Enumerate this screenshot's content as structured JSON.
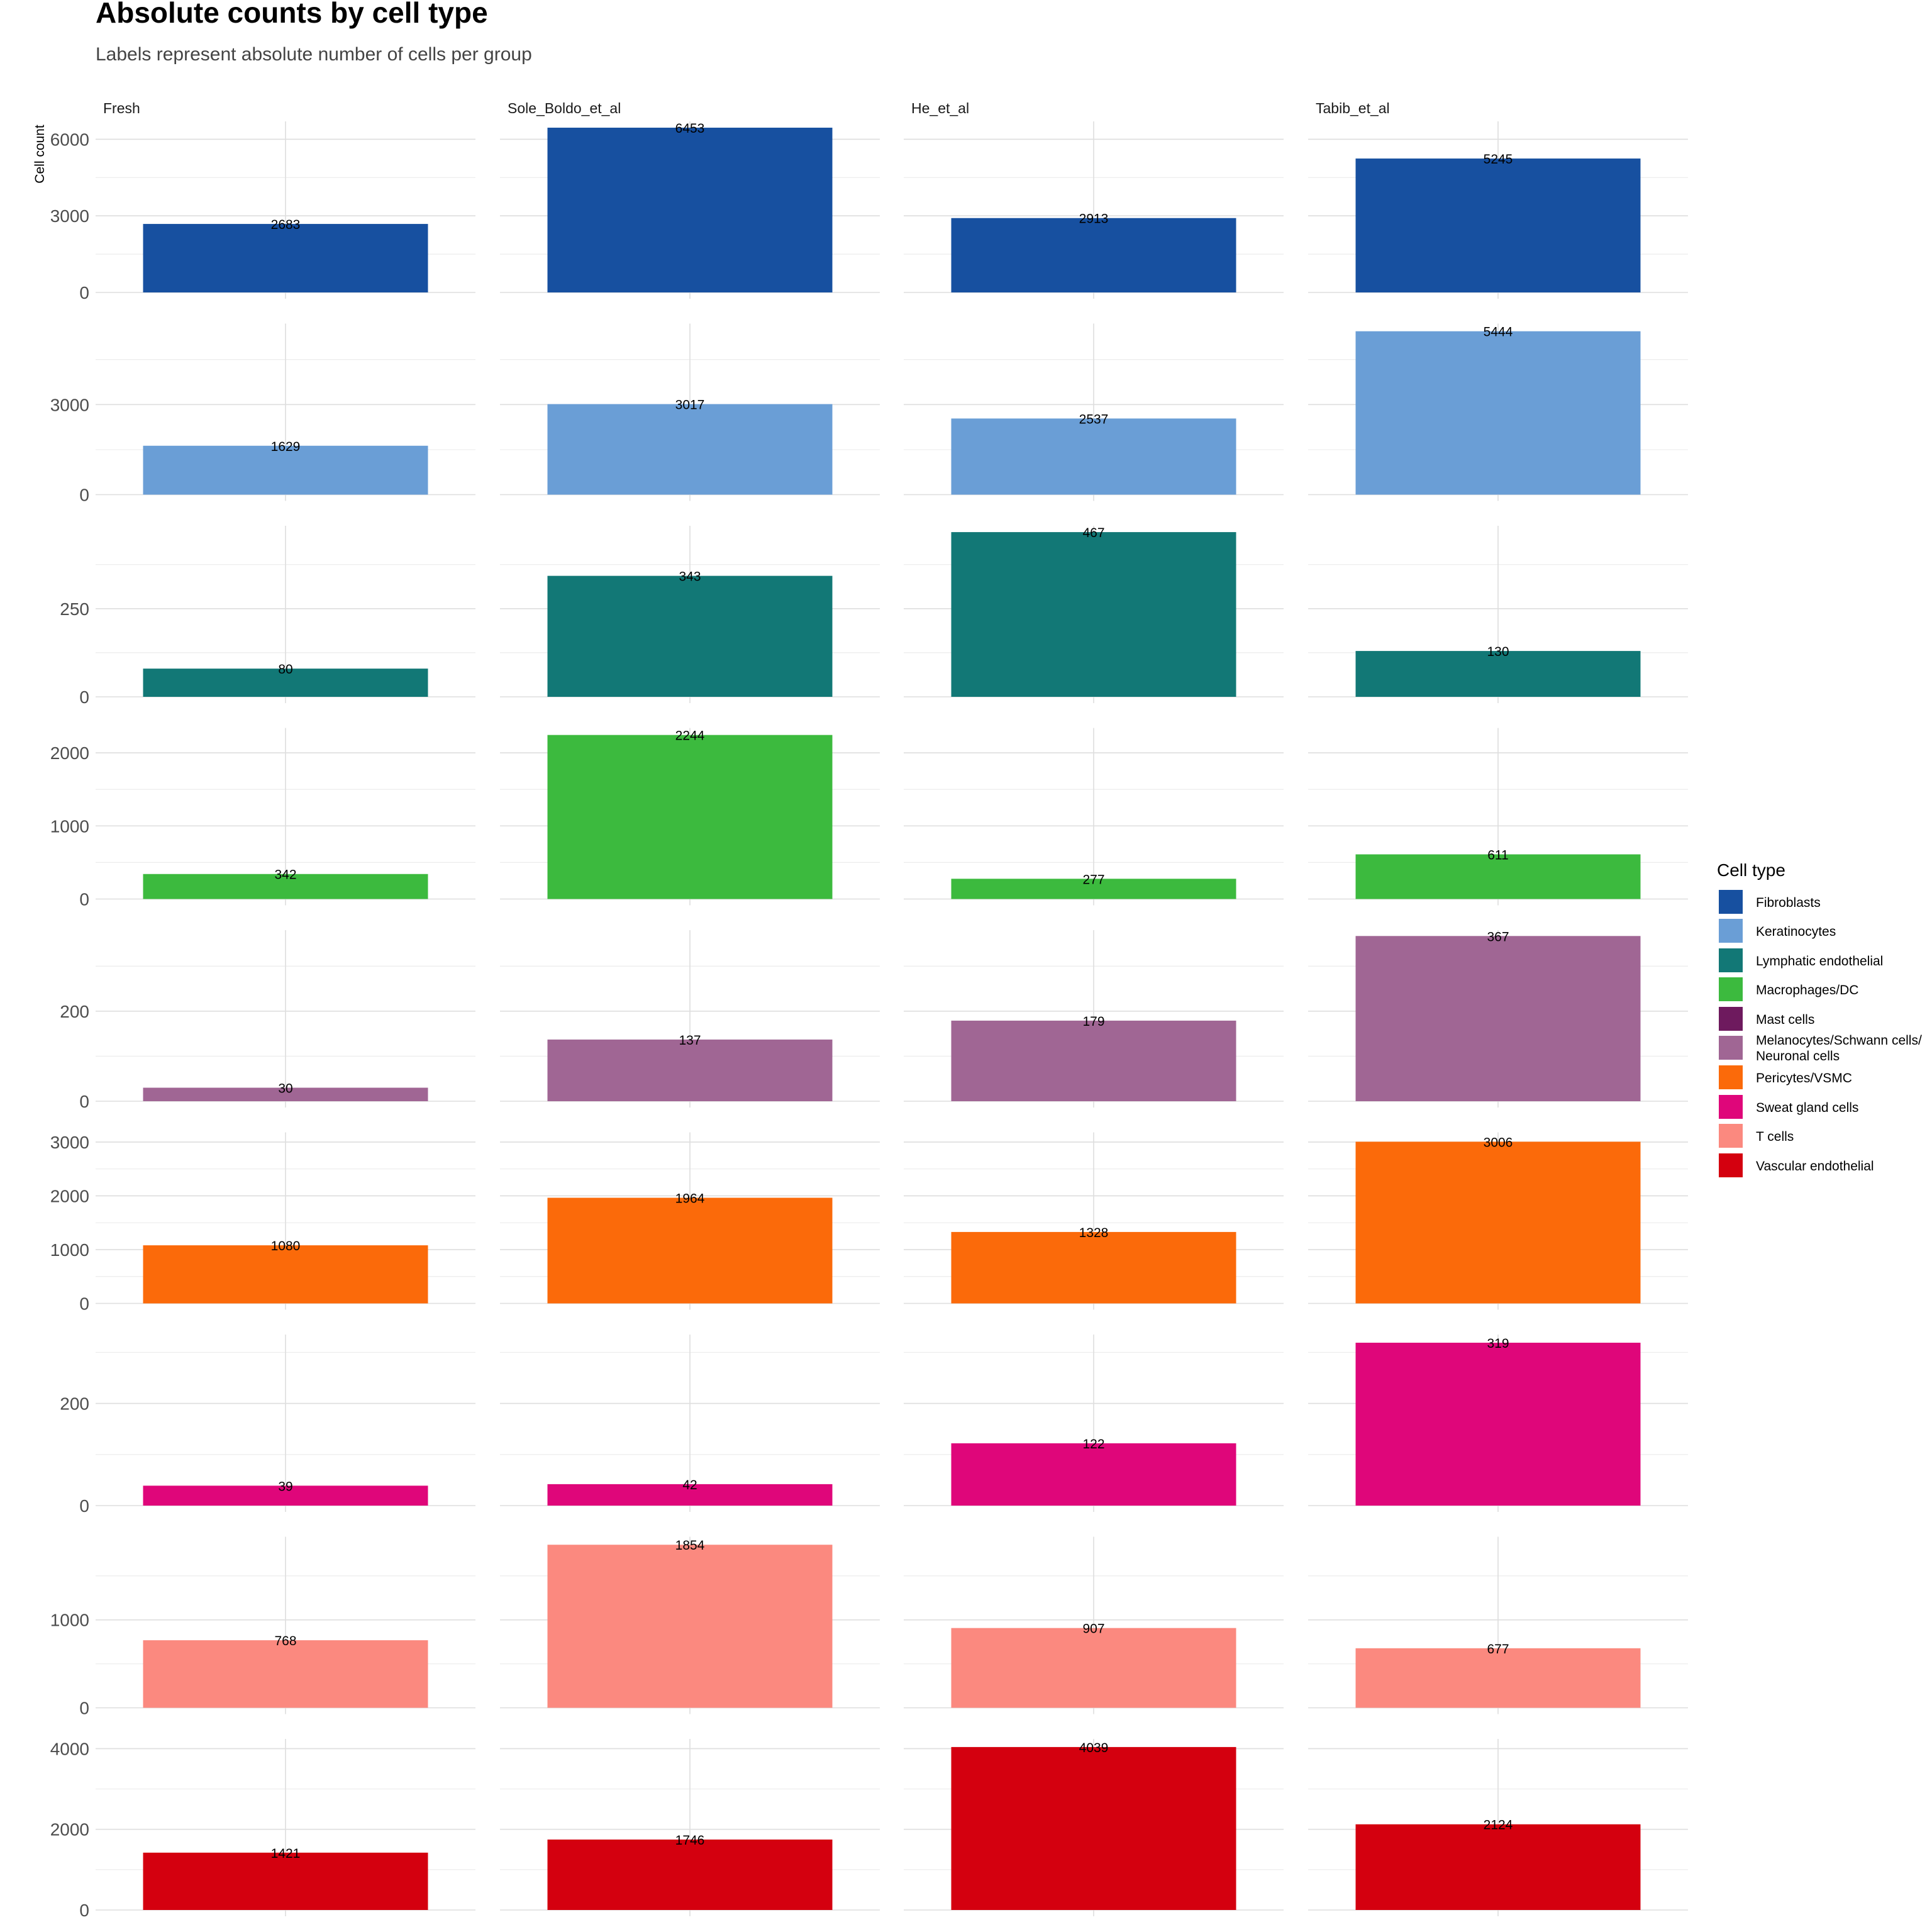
{
  "chart_data": {
    "type": "bar",
    "title": "Absolute counts by cell type",
    "subtitle": "Labels represent absolute number of cells per group",
    "ylabel": "Cell count",
    "xlabel": "",
    "facet_columns": [
      "Fresh",
      "Sole_Boldo_et_al",
      "He_et_al",
      "Tabib_et_al"
    ],
    "legend": {
      "title": "Cell type",
      "position": "right",
      "entries": [
        {
          "label": "Fibroblasts",
          "color": "#1750a0"
        },
        {
          "label": "Keratinocytes",
          "color": "#6a9ed6"
        },
        {
          "label": "Lymphatic endothelial",
          "color": "#127876"
        },
        {
          "label": "Macrophages/DC",
          "color": "#3cba3e"
        },
        {
          "label": "Mast cells",
          "color": "#6e1a5e"
        },
        {
          "label": "Melanocytes/Schwann cells/",
          "label2": "Neuronal cells",
          "color": "#a06694"
        },
        {
          "label": "Pericytes/VSMC",
          "color": "#fb6a0a"
        },
        {
          "label": "Sweat gland cells",
          "color": "#df067a"
        },
        {
          "label": "T cells",
          "color": "#fb897f"
        },
        {
          "label": "Vascular endothelial",
          "color": "#d4000f"
        }
      ]
    },
    "rows": [
      {
        "cell_type": "Fibroblasts",
        "color": "#1750a0",
        "ylim": [
          0,
          6700
        ],
        "ticks": [
          0,
          3000,
          6000
        ],
        "minor": [
          1500,
          4500
        ],
        "values": [
          2683,
          6453,
          2913,
          5245
        ],
        "labels": [
          "2683",
          "6453",
          "2913",
          "5245"
        ]
      },
      {
        "cell_type": "Keratinocytes",
        "color": "#6a9ed6",
        "ylim": [
          0,
          5700
        ],
        "ticks": [
          0,
          3000
        ],
        "minor": [
          1500,
          4500
        ],
        "values": [
          1629,
          3017,
          2537,
          5444
        ],
        "labels": [
          "1629",
          "3017",
          "2537",
          "5444"
        ]
      },
      {
        "cell_type": "Lymphatic endothelial",
        "color": "#127876",
        "ylim": [
          0,
          485
        ],
        "ticks": [
          0,
          250
        ],
        "minor": [
          125,
          375
        ],
        "values": [
          80,
          343,
          467,
          130
        ],
        "labels": [
          "80",
          "343",
          "467",
          "130"
        ]
      },
      {
        "cell_type": "Macrophages/DC",
        "color": "#3cba3e",
        "ylim": [
          0,
          2340
        ],
        "ticks": [
          0,
          1000,
          2000
        ],
        "minor": [
          500,
          1500
        ],
        "values": [
          342,
          2244,
          277,
          611
        ],
        "labels": [
          "342",
          "2244",
          "277",
          "611"
        ]
      },
      {
        "cell_type": "Melanocytes/Schwann cells/Neuronal cells",
        "color": "#a06694",
        "ylim": [
          0,
          380
        ],
        "ticks": [
          0,
          200
        ],
        "minor": [
          100,
          300
        ],
        "values": [
          30,
          137,
          179,
          367
        ],
        "labels": [
          "30",
          "137",
          "179",
          "367"
        ]
      },
      {
        "cell_type": "Pericytes/VSMC",
        "color": "#fb6a0a",
        "ylim": [
          0,
          3180
        ],
        "ticks": [
          0,
          1000,
          2000,
          3000
        ],
        "minor": [
          500,
          1500,
          2500
        ],
        "values": [
          1080,
          1964,
          1328,
          3006
        ],
        "labels": [
          "1080",
          "1964",
          "1328",
          "3006"
        ]
      },
      {
        "cell_type": "Sweat gland cells",
        "color": "#df067a",
        "ylim": [
          0,
          335
        ],
        "ticks": [
          0,
          200
        ],
        "minor": [
          100,
          300
        ],
        "values": [
          39,
          42,
          122,
          319
        ],
        "labels": [
          "39",
          "42",
          "122",
          "319"
        ]
      },
      {
        "cell_type": "T cells",
        "color": "#fb897f",
        "ylim": [
          0,
          1945
        ],
        "ticks": [
          0,
          1000
        ],
        "minor": [
          500,
          1500
        ],
        "values": [
          768,
          1854,
          907,
          677
        ],
        "labels": [
          "768",
          "1854",
          "907",
          "677"
        ]
      },
      {
        "cell_type": "Vascular endothelial",
        "color": "#d4000f",
        "ylim": [
          0,
          4240
        ],
        "ticks": [
          0,
          2000,
          4000
        ],
        "minor": [
          1000,
          3000
        ],
        "values": [
          1421,
          1746,
          4039,
          2124
        ],
        "labels": [
          "1421",
          "1746",
          "4039",
          "2124"
        ]
      }
    ]
  }
}
